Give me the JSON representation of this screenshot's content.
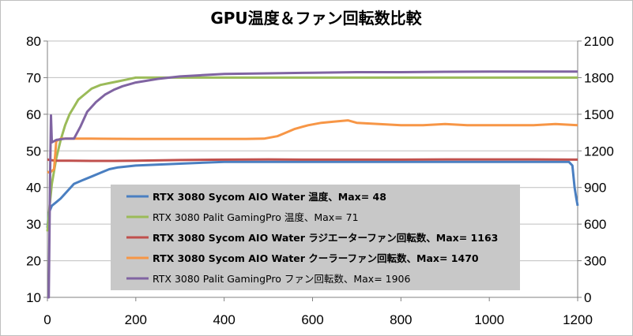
{
  "chart_data": {
    "type": "line",
    "title": "GPU温度＆ファン回転数比較",
    "xlabel": "",
    "ylabel": "",
    "xlim": [
      0,
      1200
    ],
    "ylim_left": [
      10,
      80
    ],
    "ylim_right": [
      0,
      2100
    ],
    "x_ticks": [
      "0",
      "200",
      "400",
      "600",
      "800",
      "1000",
      "1200"
    ],
    "y_left_ticks": [
      "10",
      "20",
      "30",
      "40",
      "50",
      "60",
      "70",
      "80"
    ],
    "y_right_ticks": [
      "0",
      "300",
      "600",
      "900",
      "1200",
      "1500",
      "1800",
      "2100"
    ],
    "grid": "horizontal",
    "legend_position": "center-inside",
    "series": [
      {
        "name": "RTX 3080 Sycom AIO Water 温度、Max= 48",
        "axis": "left",
        "color": "#4a7fc1",
        "bold": true,
        "points": [
          [
            0,
            29
          ],
          [
            3,
            33
          ],
          [
            10,
            35
          ],
          [
            20,
            36
          ],
          [
            30,
            37
          ],
          [
            45,
            39
          ],
          [
            60,
            41
          ],
          [
            80,
            42
          ],
          [
            100,
            43
          ],
          [
            120,
            44
          ],
          [
            140,
            45
          ],
          [
            160,
            45.5
          ],
          [
            200,
            46
          ],
          [
            300,
            46.5
          ],
          [
            400,
            47
          ],
          [
            600,
            47
          ],
          [
            800,
            47
          ],
          [
            1000,
            47
          ],
          [
            1180,
            47
          ],
          [
            1188,
            46
          ],
          [
            1193,
            40
          ],
          [
            1197,
            37
          ],
          [
            1200,
            35
          ]
        ]
      },
      {
        "name": "RTX 3080 Palit GamingPro 温度、Max= 71",
        "axis": "left",
        "color": "#9bbb59",
        "bold": false,
        "points": [
          [
            0,
            28
          ],
          [
            5,
            35
          ],
          [
            10,
            41
          ],
          [
            20,
            48
          ],
          [
            30,
            53
          ],
          [
            40,
            57
          ],
          [
            50,
            60
          ],
          [
            60,
            62
          ],
          [
            70,
            64
          ],
          [
            80,
            65
          ],
          [
            90,
            66
          ],
          [
            100,
            67
          ],
          [
            120,
            68
          ],
          [
            140,
            68.5
          ],
          [
            160,
            69
          ],
          [
            180,
            69.5
          ],
          [
            200,
            70
          ],
          [
            300,
            70
          ],
          [
            400,
            70
          ],
          [
            600,
            70
          ],
          [
            800,
            70
          ],
          [
            1000,
            70
          ],
          [
            1200,
            70
          ]
        ]
      },
      {
        "name": "RTX 3080 Sycom AIO Water ラジエーターファン回転数、Max= 1163",
        "axis": "right",
        "color": "#c0504d",
        "bold": true,
        "points": [
          [
            0,
            1130
          ],
          [
            5,
            1125
          ],
          [
            20,
            1120
          ],
          [
            50,
            1120
          ],
          [
            100,
            1118
          ],
          [
            150,
            1118
          ],
          [
            200,
            1120
          ],
          [
            300,
            1125
          ],
          [
            400,
            1128
          ],
          [
            500,
            1130
          ],
          [
            600,
            1128
          ],
          [
            700,
            1128
          ],
          [
            800,
            1128
          ],
          [
            900,
            1130
          ],
          [
            1000,
            1130
          ],
          [
            1100,
            1130
          ],
          [
            1200,
            1128
          ]
        ]
      },
      {
        "name": "RTX 3080 Sycom AIO Water クーラーファン回転数、Max= 1470",
        "axis": "right",
        "color": "#f79646",
        "bold": true,
        "points": [
          [
            0,
            1030
          ],
          [
            5,
            1020
          ],
          [
            15,
            1050
          ],
          [
            20,
            1280
          ],
          [
            30,
            1300
          ],
          [
            60,
            1300
          ],
          [
            100,
            1300
          ],
          [
            200,
            1298
          ],
          [
            300,
            1298
          ],
          [
            450,
            1298
          ],
          [
            490,
            1300
          ],
          [
            520,
            1320
          ],
          [
            540,
            1350
          ],
          [
            560,
            1380
          ],
          [
            590,
            1410
          ],
          [
            620,
            1430
          ],
          [
            650,
            1440
          ],
          [
            680,
            1450
          ],
          [
            700,
            1430
          ],
          [
            750,
            1420
          ],
          [
            800,
            1410
          ],
          [
            850,
            1410
          ],
          [
            900,
            1420
          ],
          [
            950,
            1410
          ],
          [
            1000,
            1410
          ],
          [
            1050,
            1410
          ],
          [
            1100,
            1410
          ],
          [
            1150,
            1420
          ],
          [
            1200,
            1410
          ]
        ]
      },
      {
        "name": "RTX 3080 Palit GamingPro ファン回転数、Max= 1906",
        "axis": "right",
        "color": "#8064a2",
        "bold": false,
        "points": [
          [
            0,
            0
          ],
          [
            3,
            0
          ],
          [
            6,
            1000
          ],
          [
            8,
            1490
          ],
          [
            10,
            1270
          ],
          [
            20,
            1290
          ],
          [
            40,
            1300
          ],
          [
            60,
            1300
          ],
          [
            75,
            1400
          ],
          [
            90,
            1520
          ],
          [
            110,
            1600
          ],
          [
            130,
            1660
          ],
          [
            150,
            1700
          ],
          [
            170,
            1730
          ],
          [
            200,
            1760
          ],
          [
            250,
            1790
          ],
          [
            300,
            1810
          ],
          [
            350,
            1820
          ],
          [
            400,
            1830
          ],
          [
            500,
            1835
          ],
          [
            600,
            1840
          ],
          [
            700,
            1845
          ],
          [
            800,
            1845
          ],
          [
            900,
            1848
          ],
          [
            1000,
            1850
          ],
          [
            1100,
            1850
          ],
          [
            1200,
            1850
          ]
        ]
      }
    ]
  }
}
